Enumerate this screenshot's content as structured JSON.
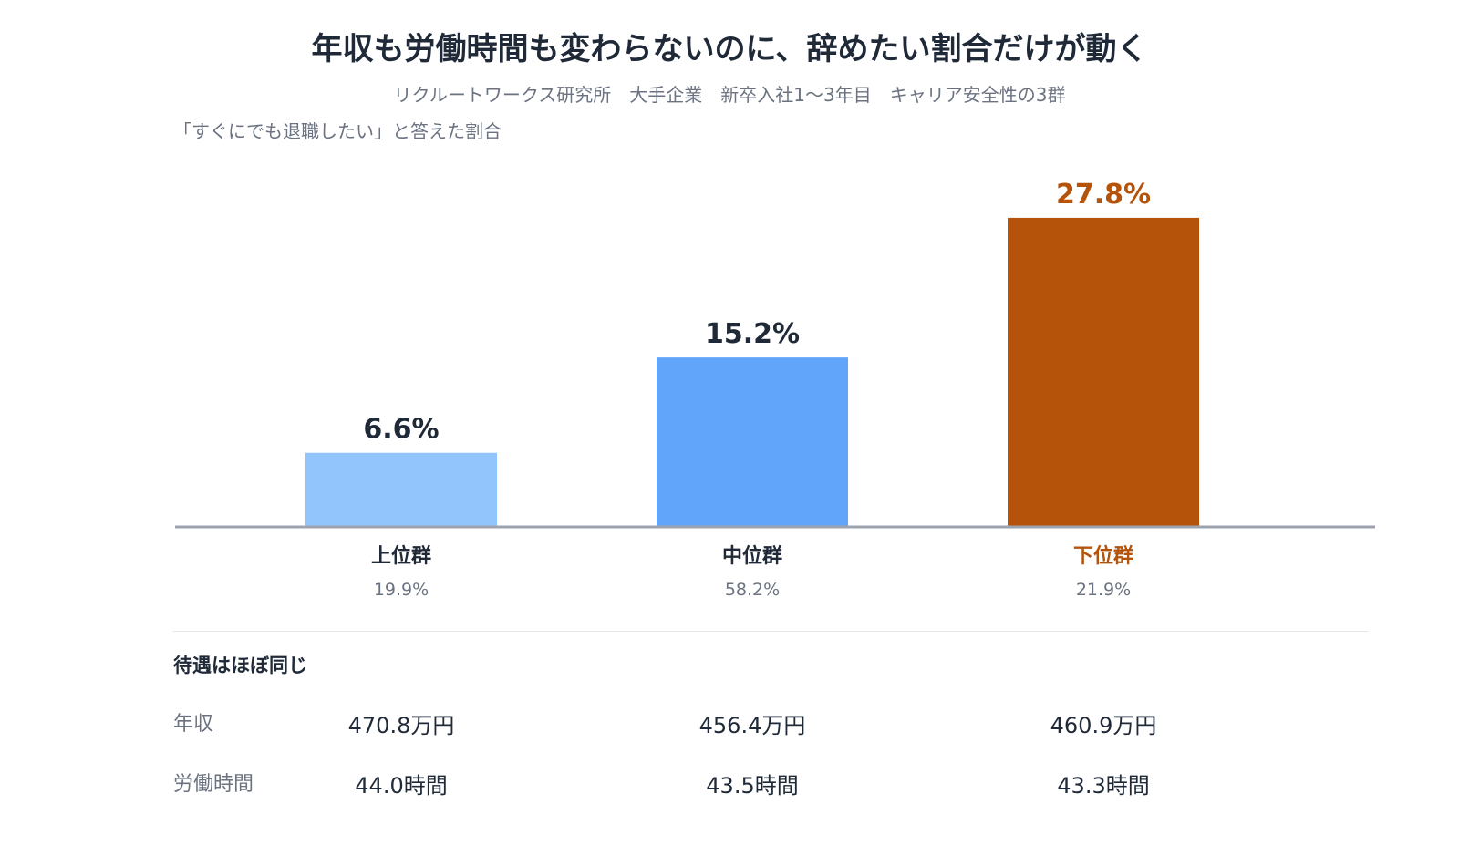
{
  "title": "年収も労働時間も変わらないのに、辞めたい割合だけが動く",
  "subtitle": "リクルートワークス研究所　大手企業　新卒入社1〜3年目　キャリア安全性の3群",
  "chart_data": {
    "type": "bar",
    "ylabel": "「すぐにでも退職したい」と答えた割合",
    "categories": [
      "上位群",
      "中位群",
      "下位群"
    ],
    "category_shares": [
      "19.9%",
      "58.2%",
      "21.9%"
    ],
    "values": [
      6.6,
      15.2,
      27.8
    ],
    "value_labels": [
      "6.6%",
      "15.2%",
      "27.8%"
    ],
    "ylim": [
      0,
      31
    ],
    "grid": false,
    "colors": [
      "#93c5fd",
      "#60a5fa",
      "#b45309"
    ],
    "label_colors": [
      "#1f2937",
      "#1f2937",
      "#b45309"
    ]
  },
  "table": {
    "section_label": "待遇はほぼ同じ",
    "rows": [
      {
        "label": "年収",
        "values": [
          "470.8万円",
          "456.4万円",
          "460.9万円"
        ]
      },
      {
        "label": "労働時間",
        "values": [
          "44.0時間",
          "43.5時間",
          "43.3時間"
        ]
      }
    ]
  }
}
